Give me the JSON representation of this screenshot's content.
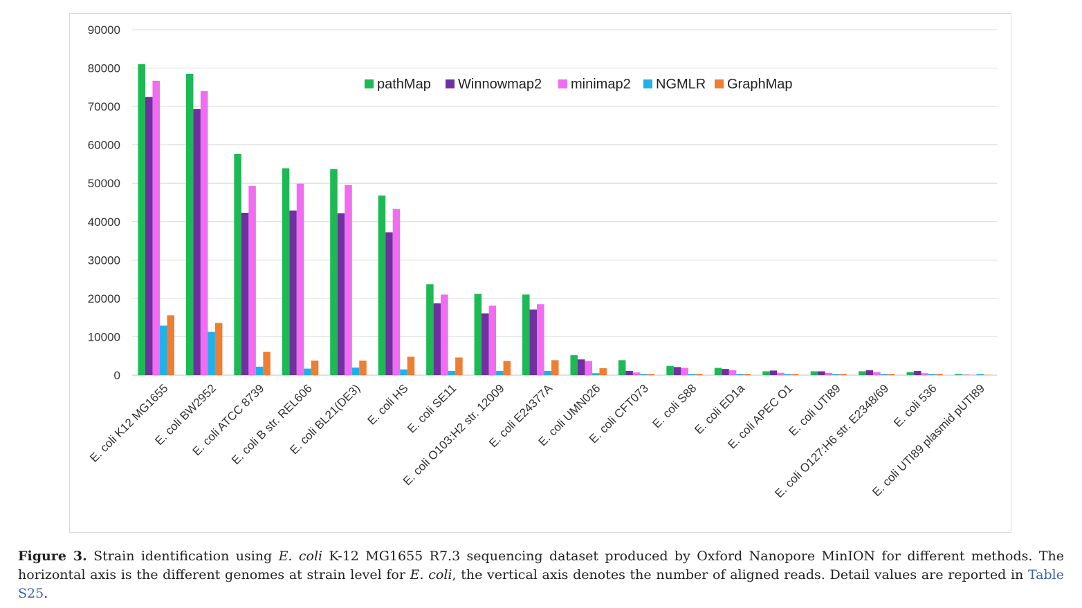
{
  "chart_data": {
    "type": "bar",
    "title": "",
    "xlabel": "",
    "ylabel": "",
    "ylim": [
      0,
      90000
    ],
    "yticks": [
      0,
      10000,
      20000,
      30000,
      40000,
      50000,
      60000,
      70000,
      80000,
      90000
    ],
    "grid": true,
    "legend_position": "top-center",
    "categories": [
      "E. coli K12 MG1655",
      "E. coli BW2952",
      "E. coli ATCC 8739",
      "E. coli B str. REL606",
      "E. coli BL21(DE3)",
      "E. coli HS",
      "E. coli SE11",
      "E. coli O103:H2 str. 12009",
      "E. coli E24377A",
      "E. coli UMN026",
      "E. coli CFT073",
      "E. coli S88",
      "E. coli ED1a",
      "E. coli APEC O1",
      "E. coli UTI89",
      "E. coli O127:H6 str. E2348/69",
      "E. coli 536",
      "E. coli UTI89 plasmid pUTI89"
    ],
    "series": [
      {
        "name": "pathMap",
        "color": "#1db954",
        "values": [
          81000,
          78500,
          57600,
          53900,
          53700,
          46800,
          23700,
          21200,
          21000,
          5200,
          3900,
          2400,
          1900,
          1000,
          1000,
          1000,
          800,
          300
        ]
      },
      {
        "name": "Winnowmap2",
        "color": "#7030a0",
        "values": [
          72500,
          69300,
          42300,
          42900,
          42200,
          37200,
          18700,
          16100,
          17100,
          4100,
          1100,
          2100,
          1600,
          1200,
          1000,
          1300,
          1100,
          100
        ]
      },
      {
        "name": "minimap2",
        "color": "#f06cf0",
        "values": [
          76700,
          74000,
          49300,
          49900,
          49500,
          43300,
          21000,
          18100,
          18500,
          3700,
          700,
          1900,
          1300,
          600,
          600,
          800,
          500,
          100
        ]
      },
      {
        "name": "NGMLR",
        "color": "#22b0e8",
        "values": [
          12900,
          11300,
          2200,
          1700,
          2000,
          1500,
          1100,
          1100,
          1100,
          500,
          300,
          300,
          300,
          300,
          300,
          300,
          300,
          300
        ]
      },
      {
        "name": "GraphMap",
        "color": "#ef7d32",
        "values": [
          15600,
          13600,
          6100,
          3800,
          3800,
          4800,
          4600,
          3700,
          3900,
          1800,
          300,
          300,
          300,
          300,
          300,
          300,
          300,
          100
        ]
      }
    ]
  },
  "caption": {
    "label": "Figure 3.",
    "t1": " Strain identification using ",
    "i1": "E. coli",
    "t2": " K-12 MG1655 R7.3 sequencing dataset produced by Oxford Nanopore MinION for different methods. The horizontal axis is the different genomes at strain level for ",
    "i2": "E. coli",
    "t3": ", the vertical axis denotes the number of aligned reads. Detail values are reported in ",
    "link": "Table S25",
    "t4": "."
  }
}
